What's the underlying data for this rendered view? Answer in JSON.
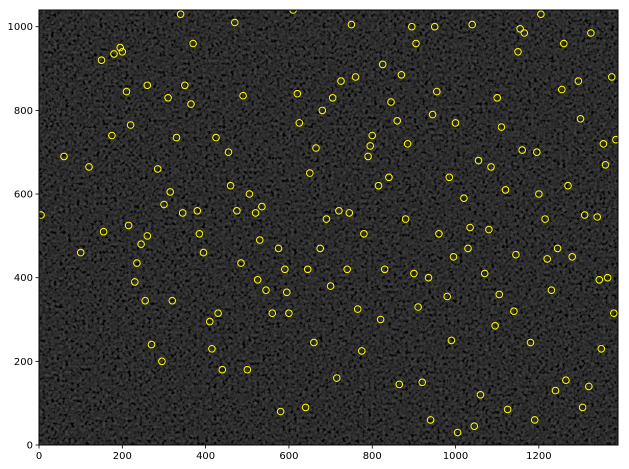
{
  "chart_data": {
    "type": "scatter",
    "title": "",
    "xlabel": "",
    "ylabel": "",
    "xlim": [
      0,
      1390
    ],
    "ylim": [
      0,
      1040
    ],
    "grid": false,
    "background": "image",
    "marker": {
      "shape": "open-circle",
      "color": "#ffff00"
    },
    "x_ticks": [
      0,
      200,
      400,
      600,
      800,
      1000,
      1200
    ],
    "y_ticks": [
      0,
      200,
      400,
      600,
      800,
      1000
    ],
    "x_tick_labels": [
      "0",
      "200",
      "400",
      "600",
      "800",
      "1000",
      "1200"
    ],
    "y_tick_labels": [
      "0",
      "200",
      "400",
      "600",
      "800",
      "1000"
    ],
    "series": [
      {
        "x": [
          5,
          60,
          100,
          120,
          155,
          180,
          195,
          210,
          220,
          260,
          300,
          320,
          350,
          380,
          395,
          430,
          460,
          490,
          500,
          520,
          560,
          580,
          600,
          620,
          640,
          660,
          680,
          700,
          720,
          740,
          760,
          780,
          800,
          820,
          840,
          860,
          880,
          900,
          920,
          940,
          960,
          980,
          1000,
          1020,
          1040,
          1060,
          1080,
          1100,
          1120,
          1140,
          1160,
          1180,
          1200,
          1220,
          1240,
          1260,
          1280,
          1300,
          1320,
          1340,
          1360,
          1380,
          150,
          230,
          270,
          330,
          370,
          440,
          470,
          530,
          590,
          650,
          690,
          750,
          790,
          830,
          870,
          910,
          950,
          990,
          1030,
          1070,
          1110,
          1150,
          1190,
          1230,
          1270,
          1310,
          1350,
          1375,
          245,
          285,
          340,
          410,
          455,
          505,
          545,
          610,
          665,
          715,
          775,
          825,
          885,
          935,
          985,
          1045,
          1095,
          1145,
          1205,
          1255,
          1305,
          1355,
          215,
          255,
          315,
          365,
          415,
          475,
          525,
          575,
          625,
          675,
          725,
          765,
          815,
          865,
          905,
          945,
          995,
          1035,
          1085,
          1125,
          1165,
          1215,
          1265,
          1325,
          1365,
          175,
          235,
          295,
          345,
          385,
          425,
          485,
          535,
          595,
          645,
          705,
          745,
          795,
          845,
          895,
          955,
          1005,
          1055,
          1105,
          1155,
          1195,
          1245,
          1295,
          1345,
          1385,
          200,
          260,
          310
        ],
        "y": [
          550,
          690,
          460,
          665,
          510,
          935,
          950,
          845,
          765,
          860,
          575,
          345,
          860,
          560,
          460,
          315,
          620,
          835,
          180,
          555,
          315,
          80,
          315,
          840,
          90,
          245,
          800,
          380,
          560,
          420,
          880,
          505,
          740,
          300,
          640,
          775,
          540,
          410,
          150,
          60,
          505,
          355,
          770,
          590,
          1005,
          120,
          515,
          830,
          610,
          320,
          705,
          245,
          600,
          445,
          130,
          960,
          450,
          780,
          140,
          545,
          670,
          315,
          920,
          390,
          240,
          735,
          960,
          180,
          1010,
          490,
          420,
          650,
          540,
          1005,
          690,
          420,
          885,
          330,
          1000,
          250,
          470,
          410,
          760,
          940,
          60,
          370,
          620,
          550,
          230,
          880,
          480,
          660,
          1030,
          295,
          700,
          600,
          370,
          1040,
          710,
          160,
          225,
          910,
          720,
          400,
          640,
          45,
          285,
          455,
          1030,
          850,
          90,
          720,
          525,
          345,
          605,
          815,
          230,
          560,
          395,
          470,
          770,
          470,
          870,
          325,
          620,
          145,
          960,
          790,
          450,
          520,
          665,
          85,
          985,
          540,
          155,
          985,
          400,
          740,
          435,
          200,
          555,
          505,
          735,
          435,
          570,
          365,
          420,
          830,
          555,
          715,
          820,
          1000,
          845,
          30,
          680,
          360,
          995,
          700,
          470,
          870,
          395,
          730,
          940,
          500,
          830
        ]
      }
    ]
  }
}
